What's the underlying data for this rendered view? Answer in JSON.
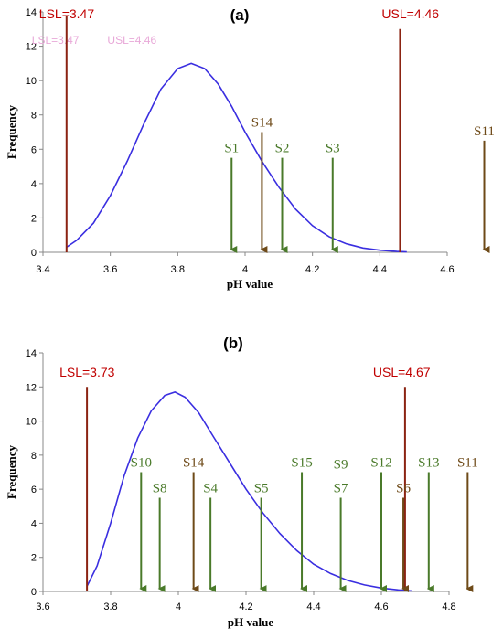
{
  "colors": {
    "curve": "#3a2ee0",
    "limit_line": "#8b2312",
    "green_arrow": "#4a7a2a",
    "brown_arrow": "#6e4a18",
    "spec_text": "#c00000",
    "ghost_text": "#e8a8d8"
  },
  "chart_data": [
    {
      "type": "line",
      "panel_label": "(a)",
      "xlabel": "pH value",
      "ylabel": "Frequency",
      "xlim": [
        3.4,
        4.6
      ],
      "ylim": [
        0,
        14
      ],
      "x_ticks": [
        "3.4",
        "3.6",
        "3.8",
        "4",
        "4.2",
        "4.4",
        "4.6"
      ],
      "y_ticks": [
        "0",
        "2",
        "4",
        "6",
        "8",
        "10",
        "12",
        "14"
      ],
      "lsl": {
        "label": "LSL=3.47",
        "x": 3.47,
        "top": 13.8
      },
      "usl": {
        "label": "USL=4.46",
        "x": 4.46,
        "top": 13.0
      },
      "ghost_labels": [
        "LSL=3.47",
        "USL=4.46"
      ],
      "curve": {
        "x": [
          3.47,
          3.5,
          3.55,
          3.6,
          3.65,
          3.7,
          3.75,
          3.8,
          3.84,
          3.88,
          3.92,
          3.96,
          4.0,
          4.05,
          4.1,
          4.15,
          4.2,
          4.25,
          4.3,
          4.35,
          4.4,
          4.45,
          4.48
        ],
        "y": [
          0.3,
          0.7,
          1.7,
          3.3,
          5.3,
          7.5,
          9.5,
          10.7,
          11.0,
          10.7,
          9.8,
          8.5,
          7.0,
          5.3,
          3.8,
          2.5,
          1.55,
          0.9,
          0.5,
          0.25,
          0.12,
          0.05,
          0.02
        ]
      },
      "markers": [
        {
          "name": "S1",
          "x": 3.96,
          "top": 5.5,
          "color": "green"
        },
        {
          "name": "S14",
          "x": 4.05,
          "top": 7.0,
          "color": "brown"
        },
        {
          "name": "S2",
          "x": 4.11,
          "top": 5.5,
          "color": "green"
        },
        {
          "name": "S3",
          "x": 4.26,
          "top": 5.5,
          "color": "green"
        },
        {
          "name": "S11",
          "x": 4.71,
          "top": 6.5,
          "color": "brown"
        }
      ]
    },
    {
      "type": "line",
      "panel_label": "(b)",
      "xlabel": "pH value",
      "ylabel": "Frequency",
      "xlim": [
        3.6,
        4.8
      ],
      "ylim": [
        0,
        14
      ],
      "x_ticks": [
        "3.6",
        "3.8",
        "4",
        "4.2",
        "4.4",
        "4.6",
        "4.8"
      ],
      "y_ticks": [
        "0",
        "2",
        "4",
        "6",
        "8",
        "10",
        "12",
        "14"
      ],
      "lsl": {
        "label": "LSL=3.73",
        "x": 3.73,
        "top": 12.0
      },
      "usl": {
        "label": "USL=4.67",
        "x": 4.67,
        "top": 12.0
      },
      "curve": {
        "x": [
          3.73,
          3.76,
          3.8,
          3.84,
          3.88,
          3.92,
          3.96,
          3.99,
          4.02,
          4.06,
          4.1,
          4.15,
          4.2,
          4.25,
          4.3,
          4.35,
          4.4,
          4.45,
          4.5,
          4.55,
          4.6,
          4.65,
          4.69
        ],
        "y": [
          0.3,
          1.5,
          4.0,
          6.8,
          9.0,
          10.6,
          11.5,
          11.7,
          11.4,
          10.5,
          9.2,
          7.6,
          6.0,
          4.6,
          3.4,
          2.4,
          1.6,
          1.05,
          0.65,
          0.38,
          0.2,
          0.09,
          0.03
        ]
      },
      "markers": [
        {
          "name": "S10",
          "x": 3.89,
          "top": 7.0,
          "color": "green"
        },
        {
          "name": "S8",
          "x": 3.945,
          "top": 5.5,
          "color": "green"
        },
        {
          "name": "S14",
          "x": 4.045,
          "top": 7.0,
          "color": "brown"
        },
        {
          "name": "S4",
          "x": 4.095,
          "top": 5.5,
          "color": "green"
        },
        {
          "name": "S5",
          "x": 4.245,
          "top": 5.5,
          "color": "green"
        },
        {
          "name": "S15",
          "x": 4.365,
          "top": 7.0,
          "color": "green"
        },
        {
          "name": "S9",
          "x": 4.48,
          "top": null,
          "color": "green",
          "label_only": true,
          "label_at": 6.9
        },
        {
          "name": "S7",
          "x": 4.48,
          "top": 5.5,
          "color": "green"
        },
        {
          "name": "S12",
          "x": 4.6,
          "top": 7.0,
          "color": "green"
        },
        {
          "name": "S6",
          "x": 4.665,
          "top": 5.5,
          "color": "brown"
        },
        {
          "name": "S13",
          "x": 4.74,
          "top": 7.0,
          "color": "green"
        },
        {
          "name": "S11",
          "x": 4.855,
          "top": 7.0,
          "color": "brown"
        }
      ]
    }
  ]
}
